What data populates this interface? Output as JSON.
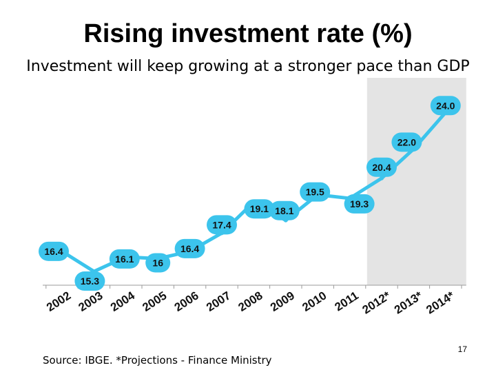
{
  "slide": {
    "title": "Rising investment rate (%)",
    "subtitle": "Investment will keep growing at a stronger pace than GDP",
    "source": "Source: IBGE. *Projections - Finance Ministry",
    "page_number": "17"
  },
  "chart_data": {
    "type": "line",
    "categories": [
      "2002",
      "2003",
      "2004",
      "2005",
      "2006",
      "2007",
      "2008",
      "2009",
      "2010",
      "2011",
      "2012*",
      "2013*",
      "2014*"
    ],
    "values": [
      16.4,
      15.3,
      16.1,
      16.0,
      16.4,
      17.4,
      19.1,
      18.1,
      19.5,
      19.3,
      20.4,
      22.0,
      24.0
    ],
    "data_labels": [
      "16.4",
      "15.3",
      "16.1",
      "16",
      "16.4",
      "17.4",
      "19.1",
      "18.1",
      "19.5",
      "19.3",
      "20.4",
      "22.0",
      "24.0"
    ],
    "projection_start_index": 10,
    "ylim": [
      15.0,
      24.5
    ],
    "colors": {
      "line": "#3cc4ec",
      "label_bubble": "#3cc4ec",
      "projection_band": "#e4e4e4"
    },
    "grid": false,
    "legend": "none"
  }
}
